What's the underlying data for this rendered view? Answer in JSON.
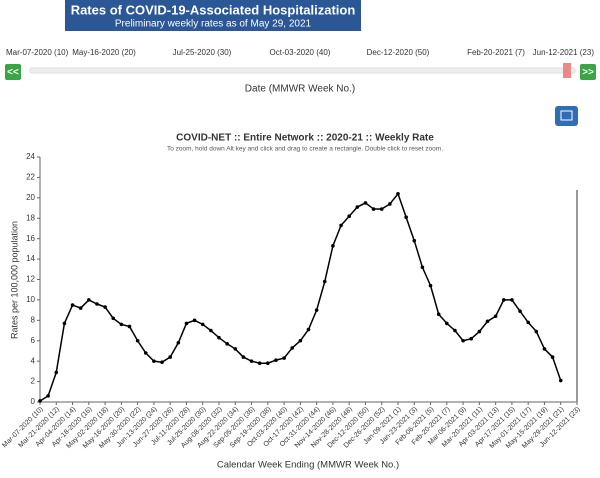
{
  "header": {
    "title": "Rates of COVID-19-Associated Hospitalization",
    "subtitle": "Preliminary weekly rates as of May 29, 2021"
  },
  "slider": {
    "labels": [
      "Mar-07-2020 (10)",
      "May-16-2020 (20)",
      "Jul-25-2020 (30)",
      "Oct-03-2020 (40)",
      "Dec-12-2020 (50)",
      "Feb-20-2021 (7)",
      "Jun-12-2021 (23)"
    ],
    "prev_button": "<<",
    "next_button": ">>",
    "axis_label": "Date (MMWR Week No.)"
  },
  "chart_data": {
    "type": "line",
    "title": "COVID-NET :: Entire Network :: 2020-21 :: Weekly Rate",
    "subtitle": "To zoom, hold down Alt key and click and drag to create a rectangle. Double click to reset zoom.",
    "x_label": "Calendar Week Ending (MMWR Week No.)",
    "y_label": "Rates per 100,000 population",
    "categories": [
      "Mar-07-2020 (10)",
      null,
      "Mar-21-2020 (12)",
      null,
      "Apr-04-2020 (14)",
      null,
      "Apr-18-2020 (16)",
      null,
      "May-02-2020 (18)",
      null,
      "May-16-2020 (20)",
      null,
      "May-30-2020 (22)",
      null,
      "Jun-13-2020 (24)",
      null,
      "Jun-27-2020 (26)",
      null,
      "Jul-11-2020 (28)",
      null,
      "Jul-25-2020 (30)",
      null,
      "Aug-08-2020 (32)",
      null,
      "Aug-22-2020 (34)",
      null,
      "Sep-05-2020 (36)",
      null,
      "Sep-19-2020 (38)",
      null,
      "Oct-03-2020 (40)",
      null,
      "Oct-17-2020 (42)",
      null,
      "Oct-31-2020 (44)",
      null,
      "Nov-14-2020 (46)",
      null,
      "Nov-28-2020 (48)",
      null,
      "Dec-12-2020 (50)",
      null,
      "Dec-26-2020 (52)",
      null,
      "Jan-09-2021 (1)",
      null,
      "Jan-23-2021 (3)",
      null,
      "Feb-06-2021 (5)",
      null,
      "Feb-20-2021 (7)",
      null,
      "Mar-06-2021 (9)",
      null,
      "Mar-20-2021 (11)",
      null,
      "Apr-03-2021 (13)",
      null,
      "Apr-17-2021 (15)",
      null,
      "May-01-2021 (17)",
      null,
      "May-15-2021 (19)",
      null,
      "May-29-2021 (21)",
      null,
      "Jun-12-2021 (23)"
    ],
    "values": [
      0.1,
      0.6,
      2.9,
      7.7,
      9.5,
      9.2,
      10.0,
      9.6,
      9.3,
      8.2,
      7.6,
      7.4,
      6.0,
      4.8,
      4.0,
      3.9,
      4.4,
      5.8,
      7.7,
      8.0,
      7.6,
      7.0,
      6.3,
      5.7,
      5.2,
      4.4,
      4.0,
      3.8,
      3.8,
      4.1,
      4.3,
      5.3,
      6.0,
      7.1,
      9.0,
      11.8,
      15.3,
      17.3,
      18.2,
      19.1,
      19.5,
      18.9,
      18.9,
      19.4,
      20.4,
      18.1,
      15.8,
      13.2,
      11.4,
      8.6,
      7.7,
      7.0,
      6.0,
      6.2,
      6.9,
      7.9,
      8.4,
      10.0,
      10.0,
      8.9,
      7.8,
      6.9,
      5.2,
      4.4,
      2.1,
      null,
      null
    ],
    "color": "#000000",
    "ylim": [
      0,
      24
    ],
    "yticks": [
      0,
      2,
      4,
      6,
      8,
      10,
      12,
      14,
      16,
      18,
      20,
      22,
      24
    ],
    "grid": false
  }
}
